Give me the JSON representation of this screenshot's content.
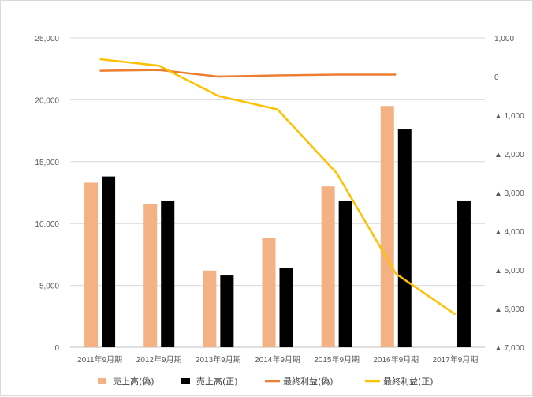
{
  "chart_data": {
    "type": "bar",
    "title": "",
    "xlabel": "",
    "ylabel": "",
    "categories": [
      "2011年9月期",
      "2012年9月期",
      "2013年9月期",
      "2014年9月期",
      "2015年9月期",
      "2016年9月期",
      "2017年9月期"
    ],
    "left_axis": {
      "range": [
        0,
        25000
      ],
      "ticks": [
        0,
        5000,
        10000,
        15000,
        20000,
        25000
      ],
      "tick_labels": [
        "0",
        "5,000",
        "10,000",
        "15,000",
        "20,000",
        "25,000"
      ]
    },
    "right_axis": {
      "range": [
        -7000,
        1000
      ],
      "ticks": [
        1000,
        0,
        -1000,
        -2000,
        -3000,
        -4000,
        -5000,
        -6000,
        -7000
      ],
      "tick_labels": [
        "1,000",
        "0",
        "▲ 1,000",
        "▲ 2,000",
        "▲ 3,000",
        "▲ 4,000",
        "▲ 5,000",
        "▲ 6,000",
        "▲ 7,000"
      ]
    },
    "grid": true,
    "legend_position": "bottom",
    "series": [
      {
        "name": "売上高(偽)",
        "kind": "bar",
        "axis": "left",
        "color": "#F4B183",
        "values": [
          13300,
          11600,
          6200,
          8800,
          13000,
          19500,
          null
        ]
      },
      {
        "name": "売上高(正)",
        "kind": "bar",
        "axis": "left",
        "color": "#000000",
        "values": [
          13800,
          11800,
          5800,
          6400,
          11800,
          17600,
          11800
        ]
      },
      {
        "name": "最終利益(偽)",
        "kind": "line",
        "axis": "right",
        "color": "#ED7D31",
        "values": [
          150,
          170,
          0,
          30,
          50,
          50,
          null
        ]
      },
      {
        "name": "最終利益(正)",
        "kind": "line",
        "axis": "right",
        "color": "#FFC000",
        "values": [
          450,
          280,
          -500,
          -850,
          -2500,
          -5100,
          -6150
        ]
      }
    ]
  }
}
